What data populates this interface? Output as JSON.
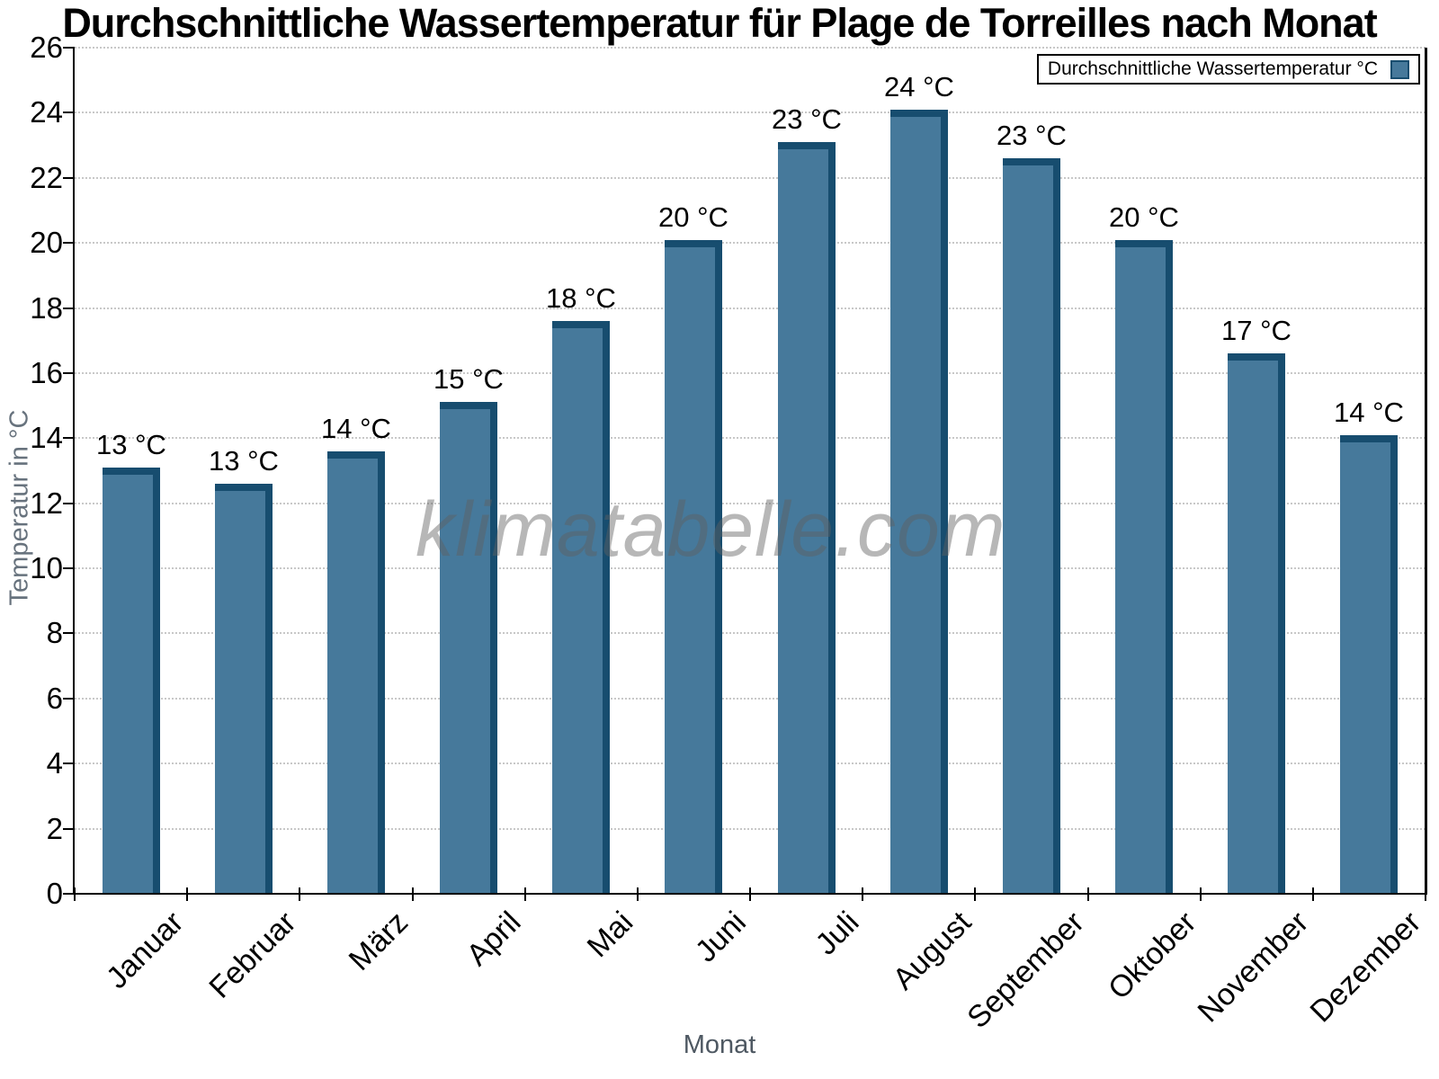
{
  "chart_data": {
    "type": "bar",
    "title": "Durchschnittliche Wassertemperatur für Plage de Torreilles nach Monat",
    "categories": [
      "Januar",
      "Februar",
      "März",
      "April",
      "Mai",
      "Juni",
      "Juli",
      "August",
      "September",
      "Oktober",
      "November",
      "Dezember"
    ],
    "values": [
      13.1,
      12.6,
      13.6,
      15.1,
      17.6,
      20.1,
      23.1,
      24.1,
      22.6,
      20.1,
      16.6,
      14.1
    ],
    "bar_labels": [
      "13 °C",
      "13 °C",
      "14 °C",
      "15 °C",
      "18 °C",
      "20 °C",
      "23 °C",
      "24 °C",
      "23 °C",
      "20 °C",
      "17 °C",
      "14 °C"
    ],
    "xlabel": "Monat",
    "ylabel": "Temperatur in °C",
    "ylim": [
      0,
      26
    ],
    "ytick_step": 2,
    "grid": "horizontal-dotted",
    "legend": {
      "label": "Durchschnittliche Wassertemperatur °C",
      "position": "top-right"
    },
    "watermark": "klimatabelle.com",
    "colors": {
      "bar_fill": "#46799b",
      "bar_edge": "#174d6f",
      "gridline": "#c8c8c8",
      "axis": "#000000",
      "axis_title": "#5c6670",
      "watermark": "#9b9b9b",
      "legend_border": "#000000",
      "background": "#ffffff"
    }
  }
}
